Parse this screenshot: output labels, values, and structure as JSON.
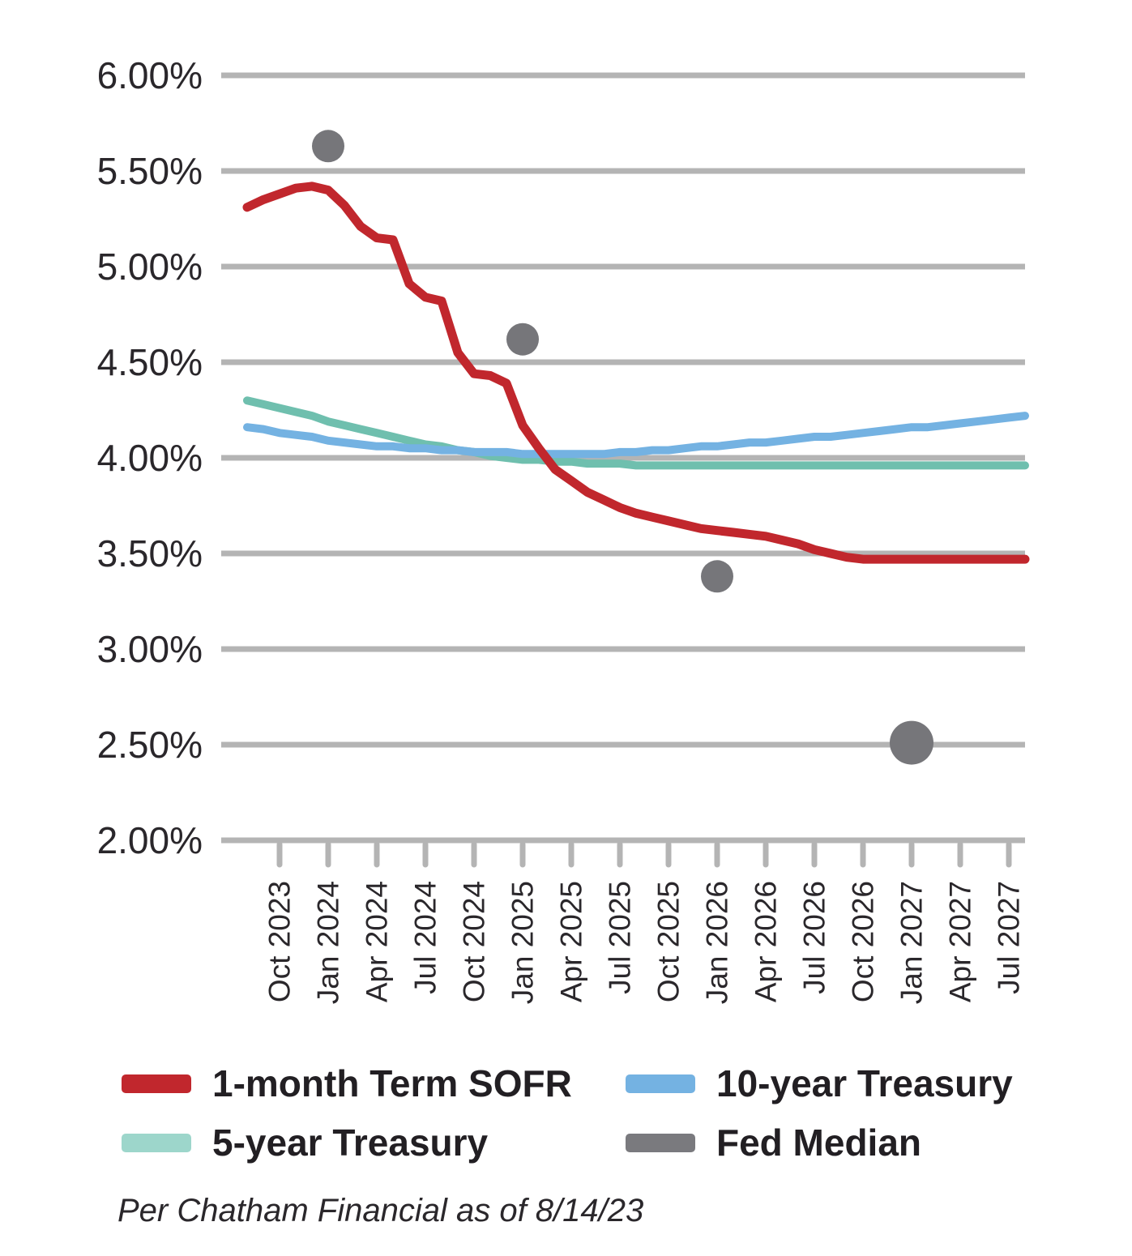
{
  "chart_data": {
    "type": "line",
    "title": "",
    "ylabel": "",
    "xlabel": "",
    "ylim": [
      2.0,
      6.0
    ],
    "y_tick_step": 0.5,
    "grid": "horizontal",
    "legend_position": "bottom",
    "y_tick_labels": [
      "6.00%",
      "5.50%",
      "5.00%",
      "4.50%",
      "4.00%",
      "3.50%",
      "3.00%",
      "2.50%",
      "2.00%"
    ],
    "x_tick_labels": [
      "Oct 2023",
      "Jan 2024",
      "Apr 2024",
      "Jul 2024",
      "Oct 2024",
      "Jan 2025",
      "Apr 2025",
      "Jul 2025",
      "Oct 2025",
      "Jan 2026",
      "Apr 2026",
      "Jul 2026",
      "Oct 2026",
      "Jan 2027",
      "Apr 2027",
      "Jul 2027"
    ],
    "x_monthly_start": "Aug 2023",
    "series": [
      {
        "name": "1-month Term SOFR",
        "color": "#c1272d",
        "stroke_width": 11,
        "values": [
          5.31,
          5.35,
          5.38,
          5.41,
          5.42,
          5.4,
          5.32,
          5.21,
          5.15,
          5.14,
          4.91,
          4.84,
          4.82,
          4.55,
          4.44,
          4.43,
          4.39,
          4.17,
          4.05,
          3.94,
          3.88,
          3.82,
          3.78,
          3.74,
          3.71,
          3.69,
          3.67,
          3.65,
          3.63,
          3.62,
          3.61,
          3.6,
          3.59,
          3.57,
          3.55,
          3.52,
          3.5,
          3.48,
          3.47,
          3.47,
          3.47,
          3.47,
          3.47,
          3.47,
          3.47,
          3.47,
          3.47,
          3.47,
          3.47
        ]
      },
      {
        "name": "10-year Treasury",
        "color": "#74b2e2",
        "stroke_width": 10,
        "values": [
          4.16,
          4.15,
          4.13,
          4.12,
          4.11,
          4.09,
          4.08,
          4.07,
          4.06,
          4.06,
          4.05,
          4.05,
          4.04,
          4.04,
          4.03,
          4.03,
          4.03,
          4.02,
          4.02,
          4.02,
          4.02,
          4.02,
          4.02,
          4.03,
          4.03,
          4.04,
          4.04,
          4.05,
          4.06,
          4.06,
          4.07,
          4.08,
          4.08,
          4.09,
          4.1,
          4.11,
          4.11,
          4.12,
          4.13,
          4.14,
          4.15,
          4.16,
          4.16,
          4.17,
          4.18,
          4.19,
          4.2,
          4.21,
          4.22
        ]
      },
      {
        "name": "5-year Treasury",
        "color": "#6fbfae",
        "stroke_width": 10,
        "values": [
          4.3,
          4.28,
          4.26,
          4.24,
          4.22,
          4.19,
          4.17,
          4.15,
          4.13,
          4.11,
          4.09,
          4.07,
          4.06,
          4.04,
          4.03,
          4.01,
          4.0,
          3.99,
          3.99,
          3.98,
          3.98,
          3.97,
          3.97,
          3.97,
          3.96,
          3.96,
          3.96,
          3.96,
          3.96,
          3.96,
          3.96,
          3.96,
          3.96,
          3.96,
          3.96,
          3.96,
          3.96,
          3.96,
          3.96,
          3.96,
          3.96,
          3.96,
          3.96,
          3.96,
          3.96,
          3.96,
          3.96,
          3.96,
          3.96
        ]
      }
    ],
    "fed_median": {
      "name": "Fed Median",
      "color": "#76767a",
      "points": [
        {
          "x_label": "Jan 2024",
          "month_index": 5,
          "value": 5.63,
          "large": false
        },
        {
          "x_label": "Jan 2025",
          "month_index": 17,
          "value": 4.62,
          "large": false
        },
        {
          "x_label": "Jan 2026",
          "month_index": 29,
          "value": 3.38,
          "large": false
        },
        {
          "x_label": "Jan 2027",
          "month_index": 41,
          "value": 2.51,
          "large": true
        }
      ]
    },
    "footnote": "Per Chatham Financial as of 8/14/23"
  },
  "legend": {
    "items": [
      {
        "label": "1-month Term SOFR",
        "color": "#c1272d"
      },
      {
        "label": "10-year Treasury",
        "color": "#74b2e2"
      },
      {
        "label": "5-year Treasury",
        "color": "#9dd6cb"
      },
      {
        "label": "Fed Median",
        "color": "#7a7a7e"
      }
    ]
  },
  "colors": {
    "gridline": "#b4b4b4",
    "axis_text": "#2a272b",
    "background": "#ffffff"
  }
}
